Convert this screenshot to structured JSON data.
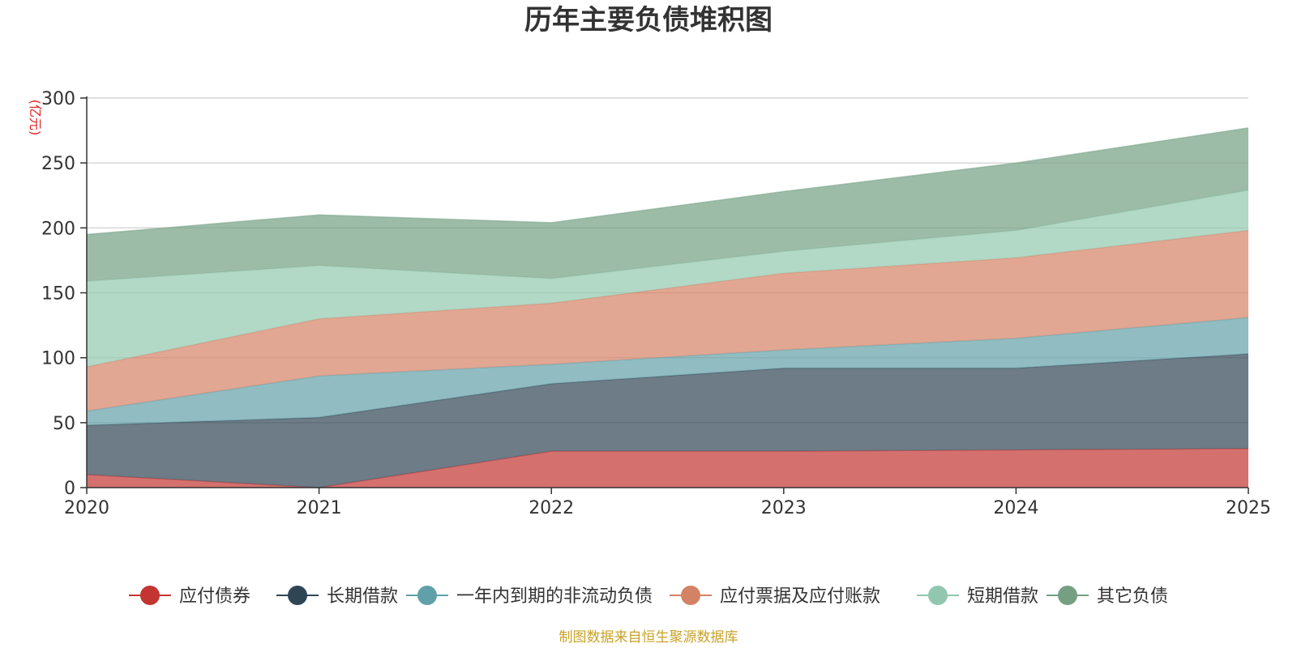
{
  "chart_data": {
    "type": "area",
    "stacked": true,
    "title": "历年主要负债堆积图",
    "unit_label": "(亿元)",
    "x": [
      "2020",
      "2021",
      "2022",
      "2023",
      "2024",
      "2025"
    ],
    "ylim": [
      0,
      300
    ],
    "yticks": [
      "0",
      "50",
      "100",
      "150",
      "200",
      "250",
      "300"
    ],
    "grid": true,
    "legend_position": "bottom",
    "series": [
      {
        "name": "应付债券",
        "color": "#c23531",
        "values": [
          10,
          0,
          28,
          28,
          29,
          30
        ]
      },
      {
        "name": "长期借款",
        "color": "#2f4554",
        "values": [
          38,
          54,
          52,
          64,
          63,
          73
        ]
      },
      {
        "name": "一年内到期的非流动负债",
        "color": "#61a0a8",
        "values": [
          11,
          32,
          15,
          14,
          23,
          28
        ]
      },
      {
        "name": "应付票据及应付账款",
        "color": "#d48265",
        "values": [
          34,
          44,
          47,
          59,
          62,
          67
        ]
      },
      {
        "name": "短期借款",
        "color": "#91c7ae",
        "values": [
          66,
          41,
          19,
          17,
          21,
          31
        ]
      },
      {
        "name": "其它负债",
        "color": "#749f83",
        "values": [
          36,
          39,
          43,
          46,
          52,
          48
        ]
      }
    ],
    "source": "制图数据来自恒生聚源数据库"
  }
}
